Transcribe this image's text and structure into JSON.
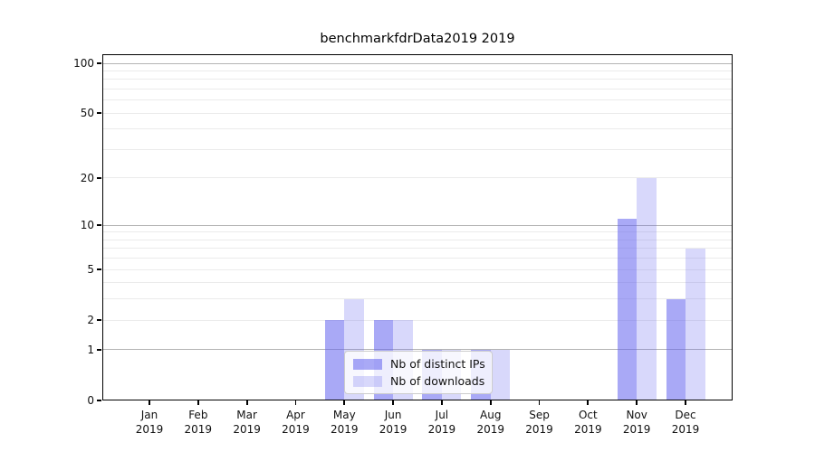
{
  "chart_data": {
    "type": "bar",
    "title": "benchmarkfdrData2019 2019",
    "categories": [
      "Jan",
      "Feb",
      "Mar",
      "Apr",
      "May",
      "Jun",
      "Jul",
      "Aug",
      "Sep",
      "Oct",
      "Nov",
      "Dec"
    ],
    "category_year": "2019",
    "series": [
      {
        "name": "Nb of distinct IPs",
        "color": "rgba(98,98,238,0.55)",
        "values": [
          0,
          0,
          0,
          0,
          2,
          2,
          1,
          1,
          0,
          0,
          11,
          3
        ]
      },
      {
        "name": "Nb of downloads",
        "color": "rgba(98,98,238,0.25)",
        "values": [
          0,
          0,
          0,
          0,
          3,
          2,
          1,
          1,
          0,
          0,
          20,
          7
        ]
      }
    ],
    "xlabel": "",
    "ylabel": "",
    "yscale": "log1p",
    "ylim": [
      0,
      100
    ],
    "ytick_values": [
      100,
      50,
      20,
      10,
      5,
      2,
      1,
      0
    ],
    "grid": {
      "on": true,
      "major": [
        1,
        10,
        100
      ],
      "minor": [
        2,
        3,
        4,
        5,
        6,
        7,
        8,
        9,
        20,
        30,
        40,
        50,
        60,
        70,
        80,
        90
      ]
    },
    "legend": {
      "position": "lower-center-inside",
      "entries": [
        "Nb of distinct IPs",
        "Nb of downloads"
      ]
    }
  }
}
